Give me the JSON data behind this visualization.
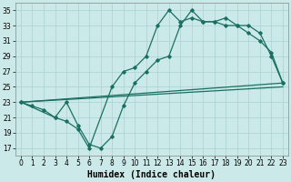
{
  "xlabel": "Humidex (Indice chaleur)",
  "background_color": "#cce9e9",
  "grid_color": "#aad0d0",
  "line_color": "#1a7060",
  "xlim": [
    -0.5,
    23.5
  ],
  "ylim": [
    16,
    36
  ],
  "yticks": [
    17,
    19,
    21,
    23,
    25,
    27,
    29,
    31,
    33,
    35
  ],
  "xticks": [
    0,
    1,
    2,
    3,
    4,
    5,
    6,
    7,
    8,
    9,
    10,
    11,
    12,
    13,
    14,
    15,
    16,
    17,
    18,
    19,
    20,
    21,
    22,
    23
  ],
  "curve_jagged1_x": [
    0,
    1,
    2,
    3,
    4,
    5,
    6,
    7,
    8,
    9,
    10,
    11,
    12,
    13,
    14,
    15,
    16,
    17,
    18,
    19,
    20,
    21,
    22,
    23
  ],
  "curve_jagged1_y": [
    23,
    22.5,
    22,
    21,
    23,
    20,
    17.5,
    17,
    18.5,
    22.5,
    25.5,
    27,
    28.5,
    29,
    33,
    35,
    33.5,
    33.5,
    34,
    33,
    32,
    31,
    29.5,
    25.5
  ],
  "curve_jagged2_x": [
    0,
    3,
    4,
    5,
    6,
    8,
    9,
    10,
    11,
    12,
    13,
    14,
    15,
    16,
    17,
    18,
    19,
    20,
    21,
    22,
    23
  ],
  "curve_jagged2_y": [
    23,
    21,
    20.5,
    19.5,
    17,
    25,
    27,
    27.5,
    29,
    33,
    35,
    33.5,
    34,
    33.5,
    33.5,
    33,
    33,
    33,
    32,
    29,
    25.5
  ],
  "line_straight1": [
    [
      0,
      23
    ],
    [
      23,
      25.5
    ]
  ],
  "line_straight2": [
    [
      0,
      23
    ],
    [
      23,
      25.0
    ]
  ],
  "fontsize_label": 7,
  "fontsize_tick": 5.5
}
